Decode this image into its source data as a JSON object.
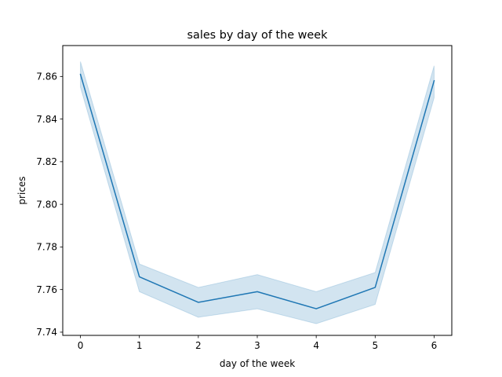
{
  "chart_data": {
    "type": "line",
    "title": "sales by day of the week",
    "xlabel": "day of the week",
    "ylabel": "prices",
    "x": [
      0,
      1,
      2,
      3,
      4,
      5,
      6
    ],
    "series": [
      {
        "values": [
          7.861,
          7.766,
          7.754,
          7.759,
          7.751,
          7.761,
          7.858
        ],
        "ci_lower": [
          7.855,
          7.759,
          7.747,
          7.751,
          7.744,
          7.753,
          7.85
        ],
        "ci_upper": [
          7.867,
          7.772,
          7.761,
          7.767,
          7.759,
          7.768,
          7.865
        ],
        "color": "#1f77b4"
      }
    ],
    "xlim": [
      -0.3,
      6.3
    ],
    "ylim": [
      7.7385,
      7.8745
    ],
    "xticks": [
      0,
      1,
      2,
      3,
      4,
      5,
      6
    ],
    "yticks": [
      7.74,
      7.76,
      7.78,
      7.8,
      7.82,
      7.84,
      7.86
    ],
    "ytick_labels": [
      "7.74",
      "7.76",
      "7.78",
      "7.80",
      "7.82",
      "7.84",
      "7.86"
    ],
    "grid": false,
    "legend": false
  }
}
